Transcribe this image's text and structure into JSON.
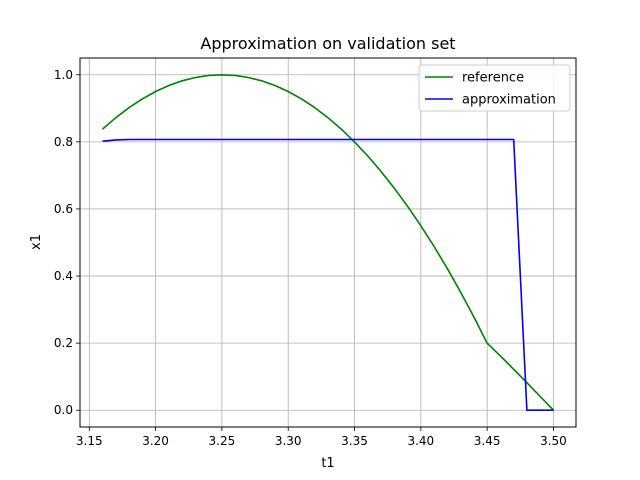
{
  "chart_data": {
    "type": "line",
    "title": "Approximation on validation set",
    "xlabel": "t1",
    "ylabel": "x1",
    "xlim": [
      3.143,
      3.517
    ],
    "ylim": [
      -0.05,
      1.05
    ],
    "xticks": [
      3.15,
      3.2,
      3.25,
      3.3,
      3.35,
      3.4,
      3.45,
      3.5
    ],
    "xtick_labels": [
      "3.15",
      "3.20",
      "3.25",
      "3.30",
      "3.35",
      "3.40",
      "3.45",
      "3.50"
    ],
    "yticks": [
      0.0,
      0.2,
      0.4,
      0.6,
      0.8,
      1.0
    ],
    "ytick_labels": [
      "0.0",
      "0.2",
      "0.4",
      "0.6",
      "0.8",
      "1.0"
    ],
    "grid": true,
    "legend_position": "top-right",
    "series": [
      {
        "name": "reference",
        "color": "#008000",
        "x": [
          3.16,
          3.17,
          3.18,
          3.19,
          3.2,
          3.21,
          3.22,
          3.23,
          3.24,
          3.25,
          3.26,
          3.27,
          3.28,
          3.29,
          3.3,
          3.31,
          3.32,
          3.33,
          3.34,
          3.35,
          3.36,
          3.37,
          3.38,
          3.39,
          3.4,
          3.41,
          3.42,
          3.43,
          3.44,
          3.45,
          3.46,
          3.47,
          3.48,
          3.49,
          3.5
        ],
        "y": [
          0.838,
          0.872,
          0.902,
          0.928,
          0.95,
          0.968,
          0.982,
          0.992,
          0.998,
          1.0,
          0.998,
          0.992,
          0.982,
          0.968,
          0.95,
          0.928,
          0.902,
          0.872,
          0.838,
          0.8,
          0.758,
          0.712,
          0.662,
          0.608,
          0.55,
          0.488,
          0.422,
          0.352,
          0.278,
          0.2,
          0.162,
          0.122,
          0.082,
          0.041,
          0.0
        ]
      },
      {
        "name": "approximation",
        "color": "#0000ff",
        "x": [
          3.16,
          3.17,
          3.18,
          3.2,
          3.25,
          3.3,
          3.35,
          3.4,
          3.45,
          3.47,
          3.48,
          3.5
        ],
        "y": [
          0.802,
          0.806,
          0.807,
          0.807,
          0.807,
          0.807,
          0.807,
          0.807,
          0.807,
          0.807,
          0.0,
          0.0
        ]
      }
    ]
  }
}
